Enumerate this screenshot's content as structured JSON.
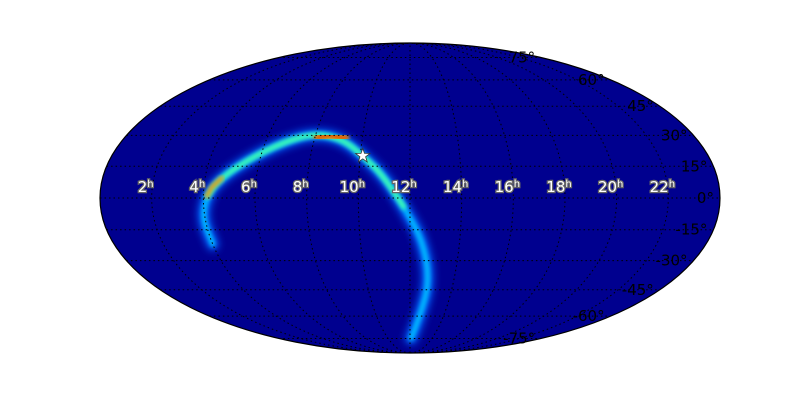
{
  "chart_data": {
    "type": "heatmap",
    "projection": "mollweide",
    "colormap": "jet",
    "background_color": "#00008f",
    "grid": true,
    "ra_center_hours": 12,
    "ra_ticks": [
      "22",
      "20",
      "18",
      "16",
      "14",
      "12",
      "10",
      "8",
      "6",
      "4",
      "2"
    ],
    "ra_tick_suffix": "h",
    "dec_ticks": [
      "75°",
      "60°",
      "45°",
      "30°",
      "15°",
      "0°",
      "-15°",
      "-30°",
      "-45°",
      "-60°",
      "-75°"
    ],
    "marker": {
      "symbol": "star",
      "color": "#ffffff",
      "ra_hours": 10.1,
      "dec_deg": 20
    },
    "probability_arc": {
      "description_points_ra_dec": [
        [
          12.1,
          -75
        ],
        [
          12.6,
          -60
        ],
        [
          12.9,
          -40
        ],
        [
          12.5,
          -20
        ],
        [
          11.8,
          -5
        ],
        [
          11,
          10
        ],
        [
          10.1,
          20
        ],
        [
          9.2,
          28
        ],
        [
          8,
          31
        ],
        [
          6.8,
          27
        ],
        [
          5.5,
          18
        ],
        [
          4.5,
          8
        ],
        [
          4.1,
          0
        ],
        [
          3.9,
          -10
        ],
        [
          4,
          -22
        ]
      ],
      "peak_ra_range_hours": [
        8.0,
        9.4
      ],
      "peak_dec_deg": 30
    }
  }
}
